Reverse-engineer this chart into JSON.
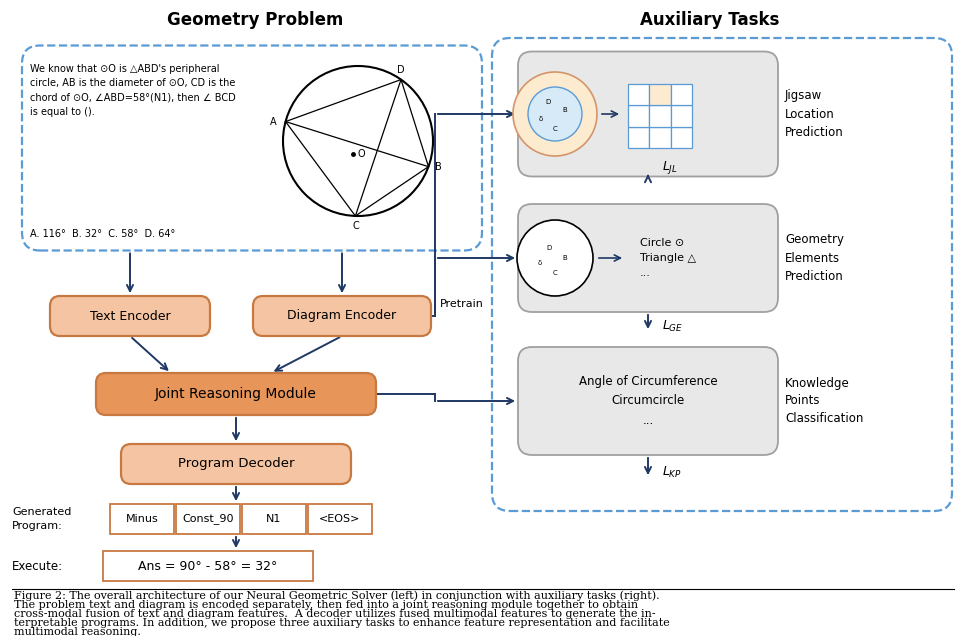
{
  "title_left": "Geometry Problem",
  "title_right": "Auxiliary Tasks",
  "bg_color": "#ffffff",
  "orange_light": "#F5C5A3",
  "orange_dark": "#E8955A",
  "orange_edge": "#C87941",
  "blue_dark": "#1F3864",
  "blue_dashed": "#5B9BD5",
  "gray_box": "#E8E8E8",
  "gray_edge": "#A0A0A0",
  "problem_text": "We know that ⊙O is △ABD's peripheral\ncircle, AB is the diameter of ⊙O, CD is the\nchord of ⊙O, ∠ABD=58°(N1), then ∠ BCD\nis equal to ().",
  "choices_text": "A. 116°  B. 32°  C. 58°  D. 64°",
  "text_encoder_label": "Text Encoder",
  "diagram_encoder_label": "Diagram Encoder",
  "joint_reasoning_label": "Joint Reasoning Module",
  "program_decoder_label": "Program Decoder",
  "generated_program_label": "Generated\nProgram:",
  "program_tokens": [
    "Minus",
    "Const_90",
    "N1",
    "<EOS>"
  ],
  "execute_label": "Execute:",
  "execute_formula": "Ans = 90° - 58° = 32°",
  "pretrain_label": "Pretrain",
  "jigsaw_label": "Jigsaw\nLocation\nPrediction",
  "geometry_elements_label": "Geometry\nElements\nPrediction",
  "knowledge_content": "Angle of Circumference\nCircumcircle\n...",
  "knowledge_label": "Knowledge\nPoints\nClassification",
  "circle_text": "Circle ⊙\nTriangle △\n...",
  "cap_lines": [
    "Figure 2: The overall architecture of our Neural Geometric Solver (left) in conjunction with auxiliary tasks (right).",
    "The problem text and diagram is encoded separately, then fed into a joint reasoning module together to obtain",
    "cross-modal fusion of text and diagram features.  A decoder utilizes fused multimodal features to generate the in-",
    "terpretable programs. In addition, we propose three auxiliary tasks to enhance feature representation and facilitate",
    "multimodal reasoning."
  ]
}
